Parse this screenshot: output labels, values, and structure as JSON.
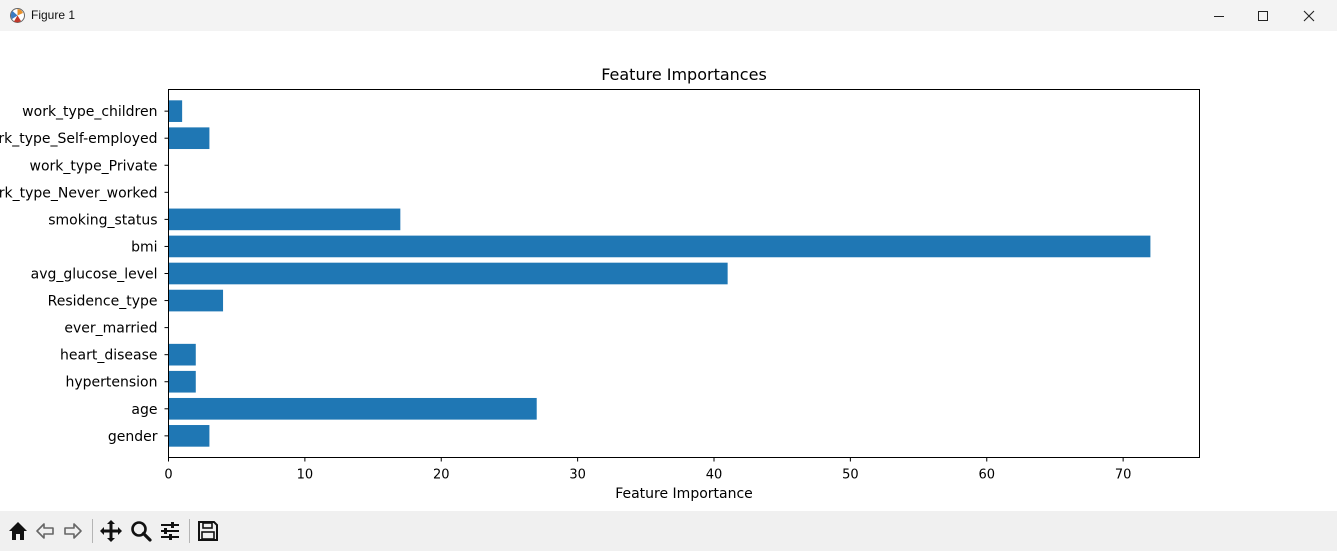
{
  "window": {
    "title": "Figure 1",
    "icons": [
      "matplotlib-icon",
      "minimize-icon",
      "maximize-icon",
      "close-icon"
    ]
  },
  "toolbar": {
    "buttons": [
      "home-icon",
      "back-icon",
      "forward-icon",
      "pan-icon",
      "zoom-icon",
      "configure-subplots-icon",
      "save-icon"
    ]
  },
  "chart_data": {
    "type": "bar",
    "orientation": "horizontal",
    "title": "Feature Importances",
    "xlabel": "Feature Importance",
    "ylabel": "",
    "categories": [
      "gender",
      "age",
      "hypertension",
      "heart_disease",
      "ever_married",
      "Residence_type",
      "avg_glucose_level",
      "bmi",
      "smoking_status",
      "work_type_Never_worked",
      "work_type_Private",
      "work_type_Self-employed",
      "work_type_children"
    ],
    "values": [
      3,
      27,
      2,
      2,
      0,
      4,
      41,
      72,
      17,
      0,
      0,
      3,
      1
    ],
    "xlim": [
      0,
      75.6
    ],
    "xticks": [
      0,
      10,
      20,
      30,
      40,
      50,
      60,
      70
    ],
    "color": "#1f77b4",
    "grid": false,
    "legend": "none"
  }
}
